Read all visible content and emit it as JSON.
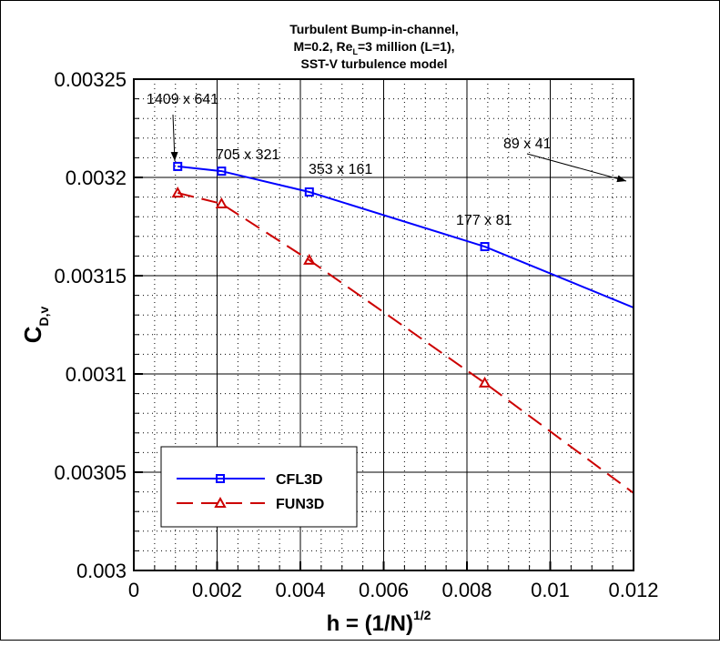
{
  "chart_data": {
    "type": "line",
    "title": [
      "Turbulent Bump-in-channel,",
      "M=0.2, Re",
      "L",
      "=3 million (L=1),",
      "SST-V turbulence model"
    ],
    "xlabel": "h = (1/N)",
    "xlabel_sup": "1/2",
    "ylabel": "C",
    "ylabel_sub": "D,v",
    "xlim": [
      0,
      0.012
    ],
    "ylim": [
      0.003,
      0.00325
    ],
    "xticks": [
      0,
      0.002,
      0.004,
      0.006,
      0.008,
      0.01,
      0.012
    ],
    "xtick_labels": [
      "0",
      "0.002",
      "0.004",
      "0.006",
      "0.008",
      "0.01",
      "0.012"
    ],
    "yticks": [
      0.003,
      0.00305,
      0.0031,
      0.00315,
      0.0032,
      0.00325
    ],
    "ytick_labels": [
      "0.003",
      "0.00305",
      "0.0031",
      "0.00315",
      "0.0032",
      "0.00325"
    ],
    "grid": true,
    "legend_placement": "bottom-left",
    "series": [
      {
        "name": "CFL3D",
        "color": "#0000ff",
        "style": "solid",
        "marker": "square",
        "x": [
          0.001054,
          0.002107,
          0.004214,
          0.008428,
          0.016855
        ],
        "y": [
          0.0032056,
          0.0032032,
          0.0031926,
          0.0031648,
          0.0030916
        ]
      },
      {
        "name": "FUN3D",
        "color": "#cc0000",
        "style": "dashed",
        "marker": "triangle",
        "x": [
          0.001054,
          0.002107,
          0.004214,
          0.008428,
          0.016855
        ],
        "y": [
          0.0031921,
          0.0031866,
          0.0031579,
          0.0030954,
          0.0029633
        ]
      }
    ],
    "annotations": [
      "1409 x 641",
      "705 x 321",
      "353 x 161",
      "177 x 81",
      "89 x 41"
    ]
  }
}
